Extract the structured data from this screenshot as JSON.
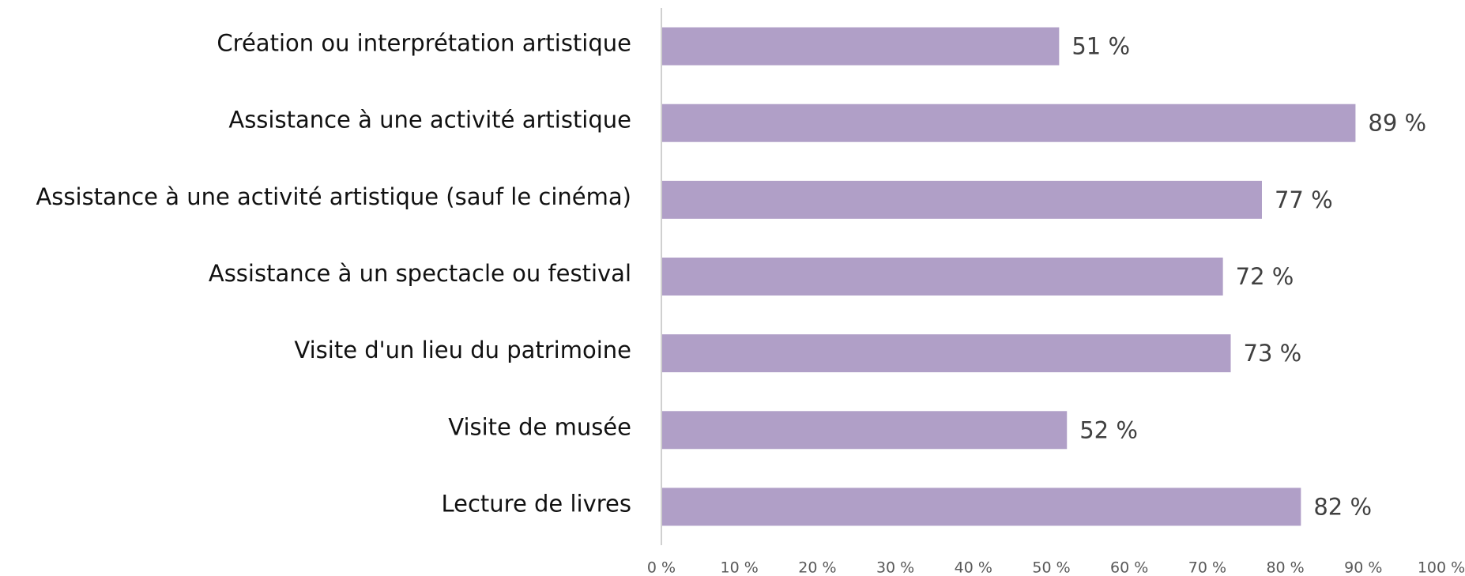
{
  "chart_data": {
    "type": "barh",
    "categories": [
      "Création ou interprétation artistique",
      "Assistance à une activité artistique",
      "Assistance à une activité artistique (sauf le cinéma)",
      "Assistance à un spectacle ou festival",
      "Visite d'un lieu du patrimoine",
      "Visite de musée",
      "Lecture de livres"
    ],
    "values": [
      51,
      89,
      77,
      72,
      73,
      52,
      82
    ],
    "value_labels": [
      "51 %",
      "89 %",
      "77 %",
      "72 %",
      "73 %",
      "52 %",
      "82 %"
    ],
    "color": "#b09fc7",
    "xlim": [
      0,
      100
    ],
    "xticks": [
      {
        "value": 0,
        "label": "0 %"
      },
      {
        "value": 10,
        "label": "10 %"
      },
      {
        "value": 20,
        "label": "20 %"
      },
      {
        "value": 30,
        "label": "30 %"
      },
      {
        "value": 40,
        "label": "40 %"
      },
      {
        "value": 50,
        "label": "50 %"
      },
      {
        "value": 60,
        "label": "60 %"
      },
      {
        "value": 70,
        "label": "70 %"
      },
      {
        "value": 80,
        "label": "80 %"
      },
      {
        "value": 90,
        "label": "90 %"
      },
      {
        "value": 100,
        "label": "100 %"
      }
    ],
    "grid": false
  }
}
